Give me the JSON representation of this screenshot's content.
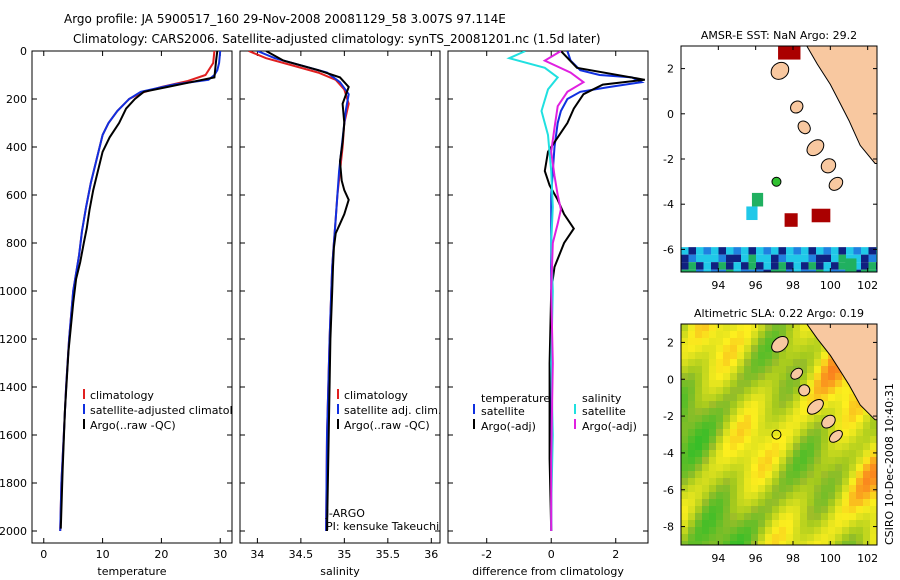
{
  "header": {
    "line1": "Argo profile: JA 5900517_160 29-Nov-2008 20081129_58 3.007S 97.114E",
    "line2": "Climatology: CARS2006. Satellite-adjusted climatology: synTS_20081201.nc (1.5d later)"
  },
  "side_label": "CSIRO 10-Dec-2008 10:40:31",
  "colors": {
    "climatology": "#e02020",
    "satellite": "#1030e0",
    "argo": "#000000",
    "sal_satellite": "#20e0e0",
    "sal_argo": "#e020e0",
    "land": "#f8c8a0",
    "sst_red": "#aa0000",
    "sst_cyan": "#20c8e8",
    "sst_green": "#20b060",
    "sst_navy": "#102080",
    "sst_blue": "#2080e0"
  },
  "chart_data": [
    {
      "type": "line",
      "panel": "temperature",
      "xlabel": "temperature",
      "ylabel": "",
      "xlim": [
        -2,
        32
      ],
      "ylim": [
        2050,
        0
      ],
      "xticks": [
        0,
        10,
        20,
        30
      ],
      "yticks": [
        0,
        200,
        400,
        600,
        800,
        1000,
        1200,
        1400,
        1600,
        1800,
        2000
      ],
      "legend": [
        "climatology",
        "satellite-adjusted climatology",
        "Argo(..raw -QC)"
      ],
      "legend_position": "lower-right",
      "series": [
        {
          "name": "climatology",
          "color_key": "climatology",
          "x": [
            29.0,
            28.8,
            27.5,
            24.5,
            20.0,
            16.5,
            14.5,
            12.5,
            11.0,
            10.0,
            9.0,
            8.0,
            7.2,
            6.5,
            6.0,
            5.0,
            4.3,
            3.8,
            3.4,
            3.0,
            2.8
          ],
          "y": [
            0,
            50,
            100,
            125,
            150,
            175,
            200,
            250,
            300,
            350,
            450,
            550,
            650,
            750,
            850,
            1000,
            1200,
            1400,
            1600,
            1800,
            2000
          ]
        },
        {
          "name": "satellite-adjusted climatology",
          "color_key": "satellite",
          "x": [
            30.0,
            29.8,
            29.5,
            29.0,
            28.0,
            22.0,
            16.5,
            14.5,
            12.5,
            11.0,
            10.0,
            9.0,
            8.0,
            7.2,
            6.5,
            6.0,
            5.0,
            4.3,
            3.8,
            3.4,
            3.0,
            2.8
          ],
          "y": [
            0,
            50,
            80,
            100,
            120,
            140,
            170,
            200,
            250,
            300,
            350,
            450,
            550,
            650,
            750,
            850,
            1000,
            1200,
            1400,
            1600,
            1800,
            2000
          ]
        },
        {
          "name": "Argo(..raw -QC)",
          "color_key": "argo",
          "x": [
            29.5,
            29.3,
            29.0,
            25.0,
            21.0,
            17.0,
            15.5,
            14.0,
            12.8,
            11.2,
            10.0,
            9.2,
            8.4,
            7.8,
            7.3,
            6.8,
            6.2,
            5.5,
            5.0,
            4.2,
            3.6,
            3.2,
            2.9
          ],
          "y": [
            0,
            40,
            110,
            130,
            150,
            170,
            200,
            240,
            300,
            360,
            420,
            500,
            580,
            660,
            740,
            800,
            880,
            950,
            1050,
            1250,
            1500,
            1750,
            1990
          ]
        }
      ]
    },
    {
      "type": "line",
      "panel": "salinity",
      "xlabel": "salinity",
      "xlim": [
        33.8,
        36.1
      ],
      "ylim": [
        2050,
        0
      ],
      "xticks": [
        34,
        34.5,
        35,
        35.5,
        36
      ],
      "legend": [
        "climatology",
        "satellite adj. clim.",
        "Argo(..raw -QC)"
      ],
      "legend_position": "lower-right",
      "annotations": [
        "J-ARGO",
        "PI: kensuke Takeuchi"
      ],
      "series": [
        {
          "name": "climatology",
          "color_key": "climatology",
          "x": [
            33.9,
            34.1,
            34.4,
            34.7,
            34.9,
            35.0,
            35.05,
            35.0,
            34.98,
            34.95,
            34.92,
            34.9,
            34.88,
            34.86,
            34.85,
            34.83,
            34.8,
            34.79
          ],
          "y": [
            0,
            30,
            60,
            90,
            120,
            160,
            220,
            300,
            400,
            500,
            600,
            700,
            800,
            900,
            1000,
            1200,
            1600,
            2000
          ]
        },
        {
          "name": "satellite adj. clim.",
          "color_key": "satellite",
          "x": [
            34.0,
            34.2,
            34.5,
            34.8,
            34.95,
            35.05,
            35.02,
            35.0,
            34.97,
            34.94,
            34.92,
            34.9,
            34.88,
            34.86,
            34.85,
            34.83,
            34.8,
            34.79
          ],
          "y": [
            0,
            30,
            60,
            90,
            130,
            180,
            240,
            300,
            400,
            500,
            600,
            700,
            800,
            900,
            1000,
            1200,
            1600,
            2000
          ]
        },
        {
          "name": "Argo(..raw -QC)",
          "color_key": "argo",
          "x": [
            34.1,
            34.3,
            34.7,
            34.95,
            35.05,
            34.98,
            35.0,
            34.98,
            34.95,
            34.97,
            35.0,
            35.05,
            35.0,
            34.95,
            34.9,
            34.88,
            34.87,
            34.86,
            34.84,
            34.82,
            34.8
          ],
          "y": [
            0,
            40,
            80,
            110,
            150,
            220,
            300,
            380,
            460,
            540,
            580,
            620,
            680,
            720,
            760,
            820,
            900,
            1000,
            1200,
            1600,
            2000
          ]
        }
      ]
    },
    {
      "type": "line",
      "panel": "difference",
      "xlabel": "difference from climatology",
      "xlim": [
        -3.2,
        3.0
      ],
      "ylim": [
        2050,
        0
      ],
      "xticks": [
        -2,
        0,
        2
      ],
      "legend": [
        "temperature",
        "satellite",
        "Argo(-adj)",
        "salinity",
        "satellite",
        "Argo(-adj)"
      ],
      "legend_position": "lower",
      "series": [
        {
          "name": "temperature satellite",
          "color_key": "satellite",
          "x": [
            0.5,
            0.6,
            0.9,
            1.5,
            2.5,
            2.8,
            1.8,
            0.9,
            0.5,
            0.3,
            0.2,
            0.1,
            0.05,
            0.0,
            0.0,
            0.0,
            0.0,
            0.0,
            0.0,
            0.0,
            0.0
          ],
          "y": [
            0,
            40,
            80,
            100,
            110,
            130,
            150,
            170,
            200,
            250,
            300,
            400,
            500,
            600,
            800,
            1000,
            1200,
            1400,
            1600,
            1800,
            2000
          ]
        },
        {
          "name": "temperature Argo(-adj)",
          "color_key": "argo",
          "x": [
            0.3,
            0.8,
            2.9,
            1.6,
            1.0,
            0.7,
            0.5,
            0.2,
            -0.1,
            -0.2,
            -0.05,
            0.2,
            0.4,
            0.6,
            0.7,
            0.4,
            0.1,
            0.0,
            -0.05,
            -0.05,
            0.0
          ],
          "y": [
            0,
            70,
            120,
            140,
            180,
            240,
            300,
            360,
            420,
            500,
            560,
            620,
            680,
            720,
            740,
            800,
            900,
            1000,
            1300,
            1700,
            2000
          ]
        },
        {
          "name": "salinity satellite",
          "color_key": "sal_satellite",
          "x": [
            -0.8,
            -1.3,
            -0.2,
            0.2,
            -0.1,
            -0.3,
            -0.1,
            0.0,
            0.05,
            0.0,
            0.05,
            0.0,
            0.05,
            0.0,
            0.0
          ],
          "y": [
            0,
            30,
            70,
            110,
            160,
            250,
            350,
            500,
            650,
            800,
            1000,
            1300,
            1600,
            1900,
            2000
          ]
        },
        {
          "name": "salinity Argo(-adj)",
          "color_key": "sal_argo",
          "x": [
            0.3,
            -0.2,
            0.6,
            1.0,
            0.5,
            0.2,
            0.1,
            0.0,
            0.1,
            0.2,
            0.3,
            0.2,
            0.05,
            0.0,
            0.05,
            0.0,
            0.0
          ],
          "y": [
            0,
            40,
            90,
            130,
            170,
            230,
            320,
            420,
            520,
            600,
            660,
            720,
            800,
            1000,
            1300,
            1700,
            2000
          ]
        }
      ]
    },
    {
      "type": "heatmap",
      "panel": "sst_map",
      "title": "AMSR-E SST: NaN Argo: 29.2",
      "xlim": [
        92,
        102.5
      ],
      "ylim": [
        -7,
        3
      ],
      "xticks": [
        94,
        96,
        98,
        100,
        102
      ],
      "yticks": [
        2,
        0,
        -2,
        -4,
        -6
      ],
      "argo_position": {
        "lon": 97.114,
        "lat": -3.007
      },
      "cells": [
        {
          "lon": 97.8,
          "lat": 2.7,
          "w": 1.2,
          "h": 0.6,
          "color_key": "sst_red"
        },
        {
          "lon": 99.5,
          "lat": -4.5,
          "w": 1.0,
          "h": 0.6,
          "color_key": "sst_red"
        },
        {
          "lon": 97.9,
          "lat": -4.7,
          "w": 0.7,
          "h": 0.6,
          "color_key": "sst_red"
        },
        {
          "lon": 96.1,
          "lat": -3.8,
          "w": 0.6,
          "h": 0.6,
          "color_key": "sst_green"
        },
        {
          "lon": 95.8,
          "lat": -4.4,
          "w": 0.6,
          "h": 0.6,
          "color_key": "sst_cyan"
        },
        {
          "lon": 101.1,
          "lat": -6.7,
          "w": 0.6,
          "h": 0.6,
          "color_key": "sst_green"
        }
      ]
    },
    {
      "type": "heatmap",
      "panel": "sla_map",
      "title": "Altimetric SLA: 0.22 Argo: 0.19",
      "xlim": [
        92,
        102.5
      ],
      "ylim": [
        -9,
        3
      ],
      "xticks": [
        94,
        96,
        98,
        100,
        102
      ],
      "yticks": [
        2,
        0,
        -2,
        -4,
        -6,
        -8
      ],
      "argo_position": {
        "lon": 97.114,
        "lat": -3.007
      }
    }
  ]
}
